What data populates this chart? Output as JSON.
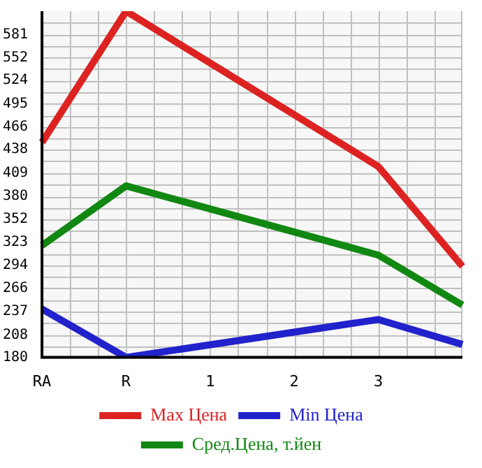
{
  "chart_data": {
    "type": "line",
    "categories": [
      "RA",
      "R",
      "1",
      "2",
      "3",
      null
    ],
    "series": [
      {
        "name": "Max Цена",
        "color": "#dd2222",
        "values": [
          447,
          610,
          null,
          null,
          417,
          293
        ]
      },
      {
        "name": "Min Цена",
        "color": "#2222cc",
        "values": [
          240,
          180,
          null,
          null,
          227,
          196
        ]
      },
      {
        "name": "Сред.Цена, т.йен",
        "color": "#118811",
        "values": [
          319,
          393,
          null,
          null,
          307,
          245
        ]
      }
    ],
    "ylim": [
      180,
      610
    ],
    "yticks": [
      180,
      208,
      237,
      266,
      294,
      323,
      352,
      380,
      409,
      438,
      466,
      495,
      524,
      552,
      581
    ],
    "grid": true,
    "legend": "bottom",
    "marker": "none",
    "line_style": "solid"
  }
}
